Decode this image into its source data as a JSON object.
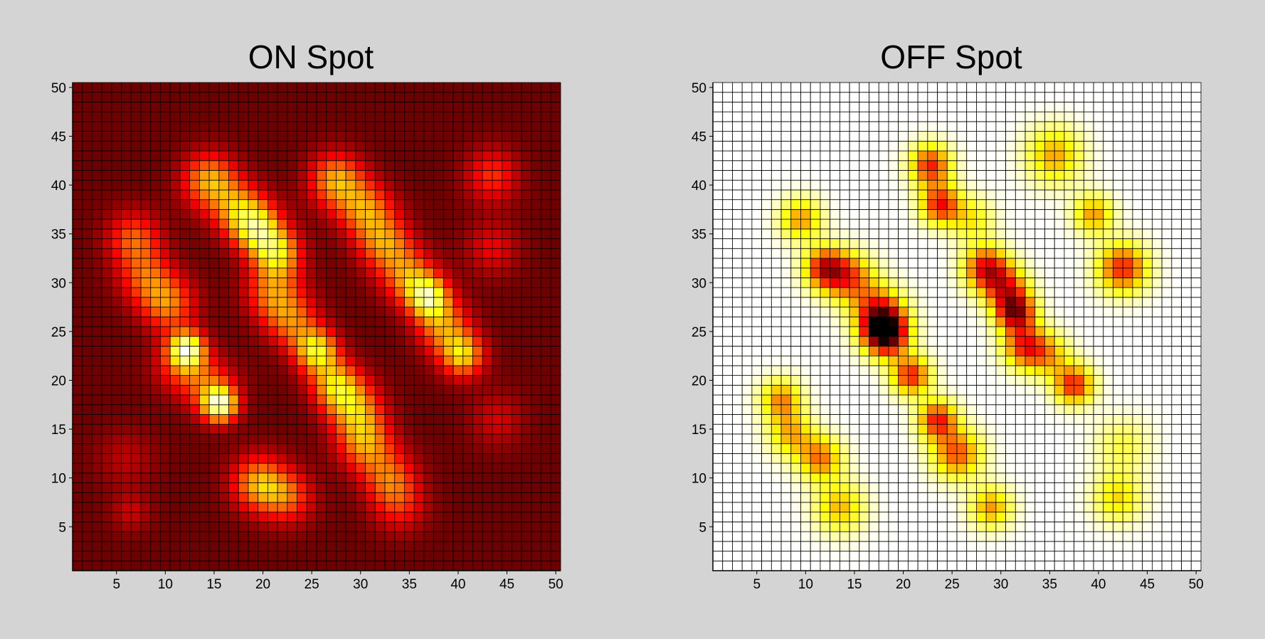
{
  "figure": {
    "background": "#d4d4d4"
  },
  "chart_data": [
    {
      "type": "heatmap",
      "title": "ON Spot",
      "colormap": "hot",
      "grid_lines": true,
      "grid_color": "#000000",
      "xlim": [
        1,
        50
      ],
      "ylim": [
        1,
        50
      ],
      "xticks": [
        5,
        10,
        15,
        20,
        25,
        30,
        35,
        40,
        45,
        50
      ],
      "yticks": [
        5,
        10,
        15,
        20,
        25,
        30,
        35,
        40,
        45,
        50
      ],
      "xlabel": "",
      "ylabel": "",
      "background_level": 0.16,
      "blobs": [
        {
          "x": 6.8,
          "y": 34.5,
          "s": 2.0,
          "v": 0.34
        },
        {
          "x": 8.0,
          "y": 30.5,
          "s": 2.0,
          "v": 0.3
        },
        {
          "x": 10.3,
          "y": 27.8,
          "s": 2.0,
          "v": 0.38
        },
        {
          "x": 12.2,
          "y": 23.2,
          "s": 1.3,
          "v": 0.66
        },
        {
          "x": 11.5,
          "y": 21.5,
          "s": 2.0,
          "v": 0.26
        },
        {
          "x": 15.6,
          "y": 17.5,
          "s": 1.3,
          "v": 0.7
        },
        {
          "x": 14.5,
          "y": 19.5,
          "s": 2.0,
          "v": 0.28
        },
        {
          "x": 14.5,
          "y": 40.5,
          "s": 2.0,
          "v": 0.46
        },
        {
          "x": 17.5,
          "y": 37.5,
          "s": 2.0,
          "v": 0.4
        },
        {
          "x": 19.5,
          "y": 35.5,
          "s": 1.8,
          "v": 0.52
        },
        {
          "x": 21.5,
          "y": 33.0,
          "s": 1.8,
          "v": 0.5
        },
        {
          "x": 21.0,
          "y": 29.0,
          "s": 2.0,
          "v": 0.36
        },
        {
          "x": 23.0,
          "y": 26.0,
          "s": 2.0,
          "v": 0.34
        },
        {
          "x": 25.5,
          "y": 23.0,
          "s": 1.6,
          "v": 0.56
        },
        {
          "x": 27.5,
          "y": 19.5,
          "s": 1.8,
          "v": 0.48
        },
        {
          "x": 29.5,
          "y": 17.0,
          "s": 2.0,
          "v": 0.4
        },
        {
          "x": 30.5,
          "y": 13.5,
          "s": 2.0,
          "v": 0.4
        },
        {
          "x": 33.0,
          "y": 10.0,
          "s": 2.0,
          "v": 0.32
        },
        {
          "x": 34.0,
          "y": 7.0,
          "s": 2.0,
          "v": 0.22
        },
        {
          "x": 19.5,
          "y": 9.5,
          "s": 2.0,
          "v": 0.44
        },
        {
          "x": 22.5,
          "y": 8.0,
          "s": 2.0,
          "v": 0.32
        },
        {
          "x": 27.5,
          "y": 40.5,
          "s": 2.0,
          "v": 0.46
        },
        {
          "x": 30.5,
          "y": 37.5,
          "s": 2.0,
          "v": 0.4
        },
        {
          "x": 32.5,
          "y": 34.0,
          "s": 2.0,
          "v": 0.4
        },
        {
          "x": 35.0,
          "y": 30.5,
          "s": 2.0,
          "v": 0.4
        },
        {
          "x": 37.0,
          "y": 28.5,
          "s": 1.5,
          "v": 0.56
        },
        {
          "x": 38.5,
          "y": 25.5,
          "s": 2.0,
          "v": 0.4
        },
        {
          "x": 40.5,
          "y": 22.5,
          "s": 1.6,
          "v": 0.5
        },
        {
          "x": 43.5,
          "y": 41.0,
          "s": 2.0,
          "v": 0.28
        },
        {
          "x": 43.5,
          "y": 33.5,
          "s": 2.0,
          "v": 0.2
        },
        {
          "x": 44.0,
          "y": 16.0,
          "s": 2.0,
          "v": 0.16
        },
        {
          "x": 6.0,
          "y": 12.0,
          "s": 2.2,
          "v": 0.12
        },
        {
          "x": 6.5,
          "y": 6.5,
          "s": 1.5,
          "v": 0.14
        }
      ]
    },
    {
      "type": "heatmap",
      "title": "OFF Spot",
      "colormap": "hot-reversed",
      "grid_lines": true,
      "grid_color": "#000000",
      "xlim": [
        1,
        50
      ],
      "ylim": [
        1,
        50
      ],
      "xticks": [
        5,
        10,
        15,
        20,
        25,
        30,
        35,
        40,
        45,
        50
      ],
      "yticks": [
        5,
        10,
        15,
        20,
        25,
        30,
        35,
        40,
        45,
        50
      ],
      "xlabel": "",
      "ylabel": "",
      "background_level": 0.0,
      "blobs": [
        {
          "x": 18.2,
          "y": 24.8,
          "s": 1.6,
          "v": 0.95
        },
        {
          "x": 17.5,
          "y": 27.0,
          "s": 1.8,
          "v": 0.55
        },
        {
          "x": 20.8,
          "y": 20.5,
          "s": 1.4,
          "v": 0.58
        },
        {
          "x": 12.0,
          "y": 31.5,
          "s": 1.5,
          "v": 0.62
        },
        {
          "x": 14.5,
          "y": 30.5,
          "s": 1.8,
          "v": 0.48
        },
        {
          "x": 9.5,
          "y": 36.5,
          "s": 1.5,
          "v": 0.4
        },
        {
          "x": 22.8,
          "y": 42.0,
          "s": 1.5,
          "v": 0.58
        },
        {
          "x": 23.8,
          "y": 38.0,
          "s": 1.4,
          "v": 0.6
        },
        {
          "x": 27.0,
          "y": 36.5,
          "s": 1.6,
          "v": 0.26
        },
        {
          "x": 28.5,
          "y": 31.5,
          "s": 1.6,
          "v": 0.62
        },
        {
          "x": 30.5,
          "y": 29.5,
          "s": 1.6,
          "v": 0.48
        },
        {
          "x": 31.5,
          "y": 27.0,
          "s": 1.4,
          "v": 0.72
        },
        {
          "x": 32.5,
          "y": 23.5,
          "s": 1.6,
          "v": 0.55
        },
        {
          "x": 35.5,
          "y": 43.0,
          "s": 2.0,
          "v": 0.38
        },
        {
          "x": 39.5,
          "y": 37.0,
          "s": 1.4,
          "v": 0.4
        },
        {
          "x": 42.5,
          "y": 31.5,
          "s": 1.8,
          "v": 0.58
        },
        {
          "x": 37.5,
          "y": 19.5,
          "s": 1.4,
          "v": 0.58
        },
        {
          "x": 35.0,
          "y": 22.5,
          "s": 1.6,
          "v": 0.3
        },
        {
          "x": 23.5,
          "y": 16.0,
          "s": 1.4,
          "v": 0.58
        },
        {
          "x": 25.5,
          "y": 12.5,
          "s": 1.8,
          "v": 0.5
        },
        {
          "x": 7.5,
          "y": 18.0,
          "s": 1.5,
          "v": 0.42
        },
        {
          "x": 8.5,
          "y": 14.5,
          "s": 1.6,
          "v": 0.35
        },
        {
          "x": 11.5,
          "y": 12.0,
          "s": 1.6,
          "v": 0.45
        },
        {
          "x": 13.5,
          "y": 7.0,
          "s": 1.8,
          "v": 0.35
        },
        {
          "x": 29.0,
          "y": 7.0,
          "s": 1.5,
          "v": 0.4
        },
        {
          "x": 42.0,
          "y": 8.0,
          "s": 1.8,
          "v": 0.3
        },
        {
          "x": 42.5,
          "y": 13.5,
          "s": 2.0,
          "v": 0.18
        }
      ]
    }
  ]
}
